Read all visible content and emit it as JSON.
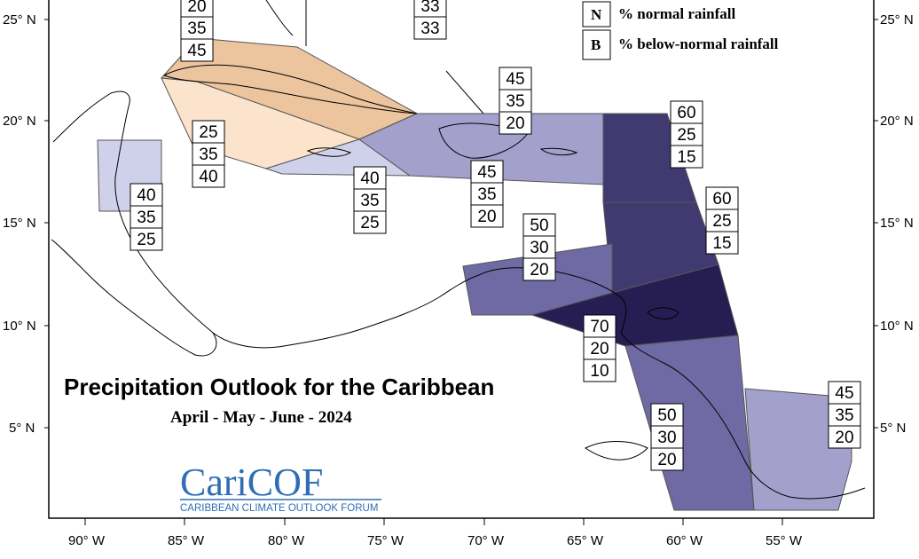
{
  "title": "Precipitation Outlook for the Caribbean",
  "subtitle": "April - May - June - 2024",
  "logo": {
    "text": "CariCOF",
    "tagline": "CARIBBEAN CLIMATE OUTLOOK FORUM"
  },
  "legend": [
    {
      "key": "N",
      "label": "% normal rainfall"
    },
    {
      "key": "B",
      "label": "% below-normal rainfall"
    }
  ],
  "axes": {
    "lat_labels": [
      "25° N",
      "20° N",
      "15° N",
      "10° N",
      "5° N"
    ],
    "lon_labels": [
      "90° W",
      "85° W",
      "80° W",
      "75° W",
      "70° W",
      "65° W",
      "60° W",
      "55° W"
    ]
  },
  "colors": {
    "below_light": "#fbe3cc",
    "below_mid": "#ecc49d",
    "above_light": "#cfd0ea",
    "above_mid": "#a3a0cc",
    "above_strong": "#6f6aa3",
    "above_dark": "#403a71",
    "above_darkest": "#261e53"
  },
  "probability_boxes": [
    {
      "id": "a",
      "values": [
        "20",
        "35",
        "45"
      ]
    },
    {
      "id": "b",
      "values": [
        "33",
        "33"
      ]
    },
    {
      "id": "c",
      "values": [
        "25",
        "35",
        "40"
      ]
    },
    {
      "id": "d",
      "values": [
        "40",
        "35",
        "25"
      ]
    },
    {
      "id": "e",
      "values": [
        "40",
        "35",
        "25"
      ]
    },
    {
      "id": "f",
      "values": [
        "45",
        "35",
        "20"
      ]
    },
    {
      "id": "g",
      "values": [
        "45",
        "35",
        "20"
      ]
    },
    {
      "id": "h",
      "values": [
        "60",
        "25",
        "15"
      ]
    },
    {
      "id": "i",
      "values": [
        "60",
        "25",
        "15"
      ]
    },
    {
      "id": "j",
      "values": [
        "50",
        "30",
        "20"
      ]
    },
    {
      "id": "k",
      "values": [
        "70",
        "20",
        "10"
      ]
    },
    {
      "id": "l",
      "values": [
        "50",
        "30",
        "20"
      ]
    },
    {
      "id": "m",
      "values": [
        "45",
        "35",
        "20"
      ]
    }
  ]
}
